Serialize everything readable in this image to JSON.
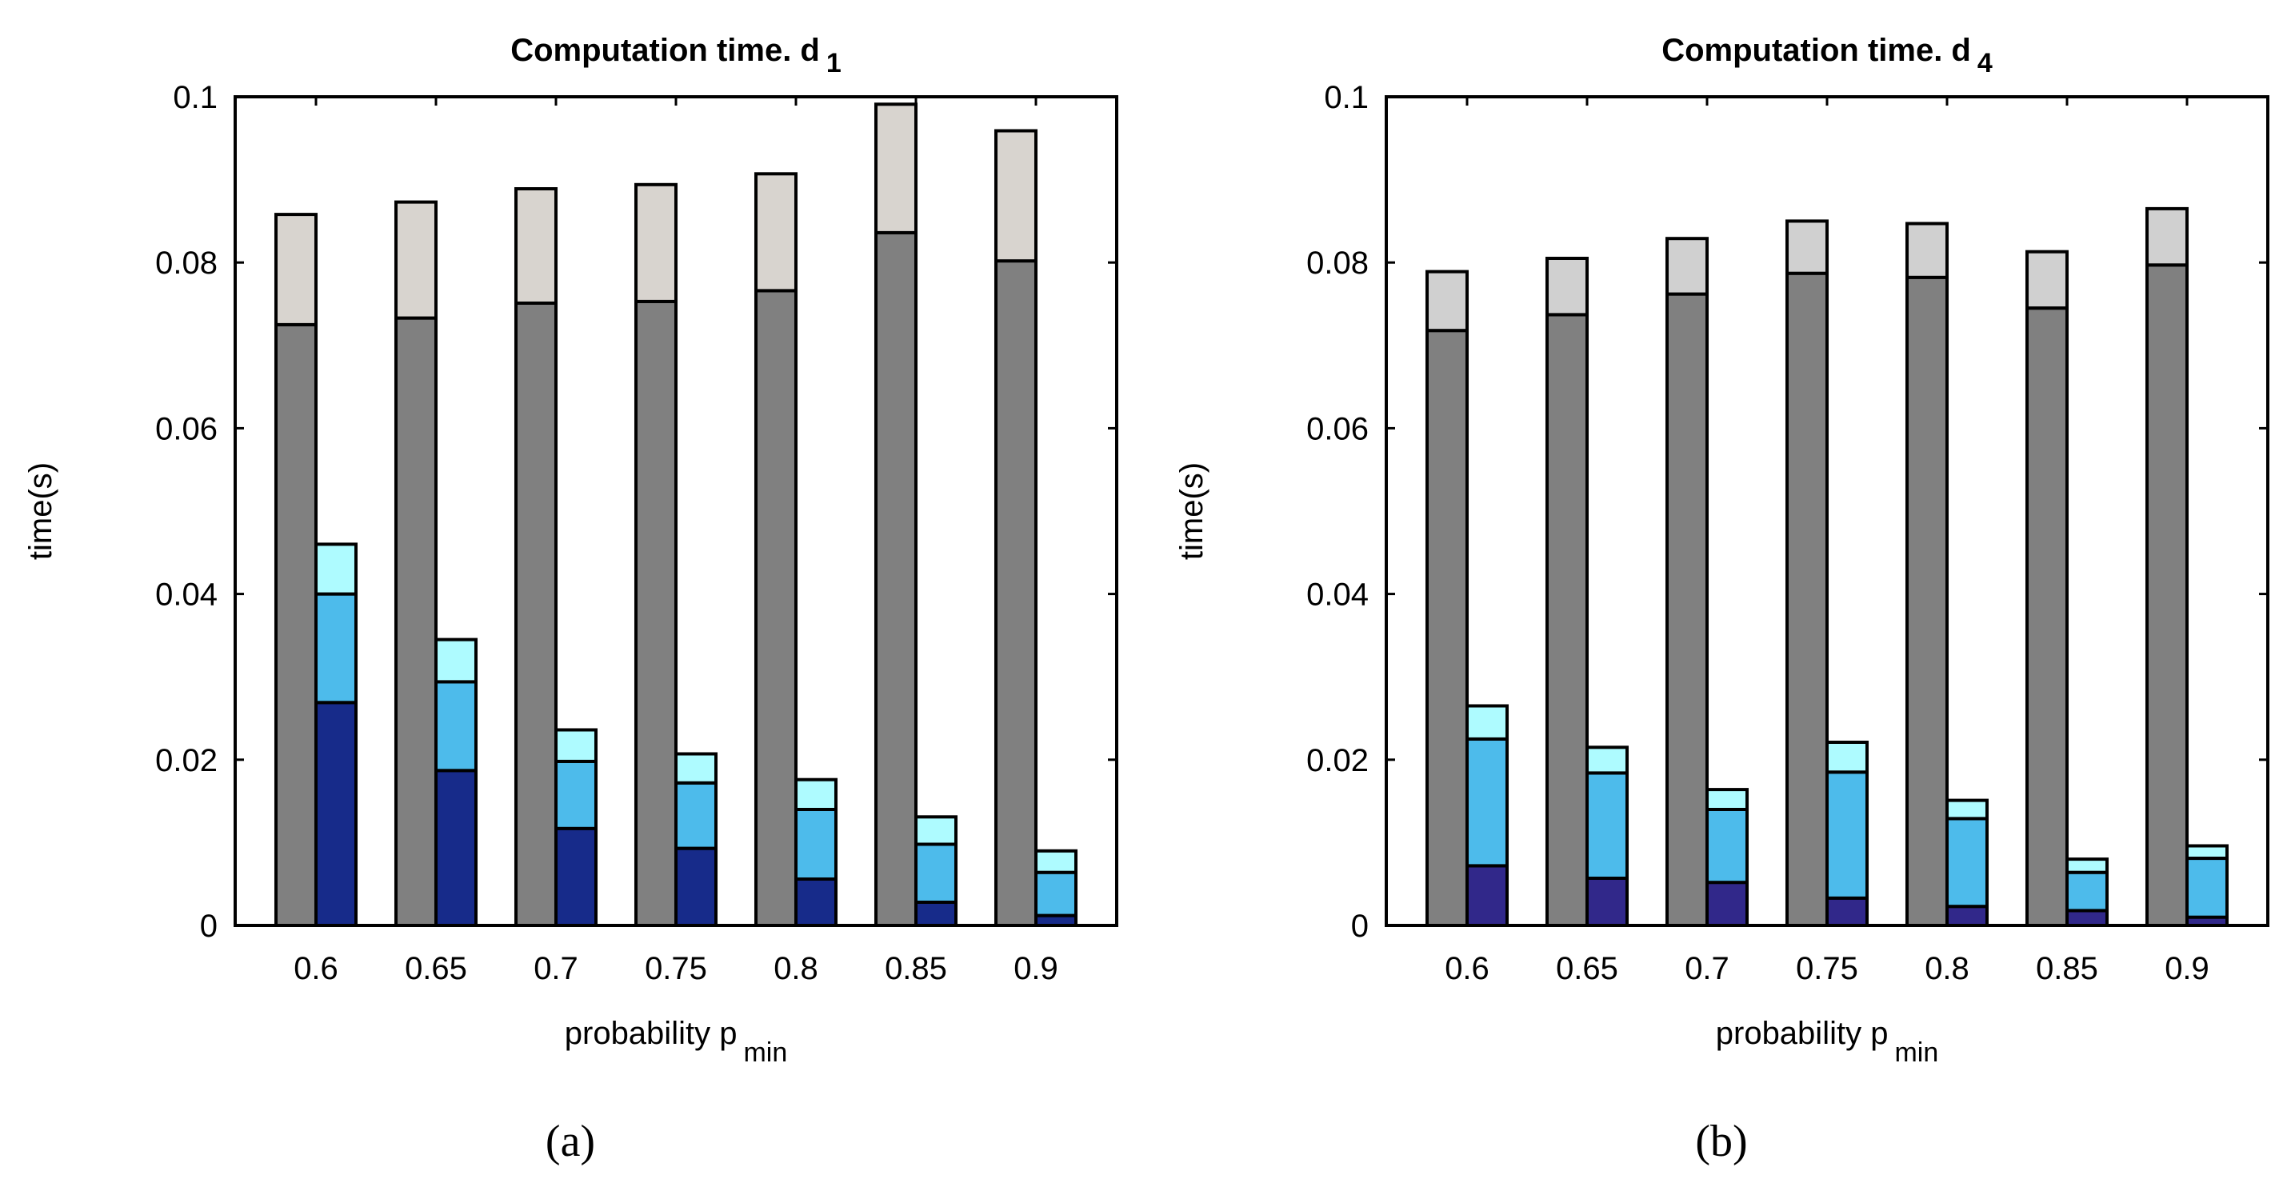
{
  "chart_data": [
    {
      "type": "bar",
      "panel_label": "(a)",
      "title": "Computation time. d",
      "title_subscript": "1",
      "xlabel": "probability p",
      "xlabel_subscript": "min",
      "ylabel": "time(s)",
      "ylim": [
        0,
        0.1
      ],
      "yticks": [
        "0",
        "0.02",
        "0.04",
        "0.06",
        "0.08",
        "0.1"
      ],
      "grid": false,
      "categories": [
        "0.6",
        "0.65",
        "0.7",
        "0.75",
        "0.8",
        "0.85",
        "0.9"
      ],
      "stacks": [
        {
          "colors": [
            "#808080",
            "#d8d4cf"
          ],
          "values": [
            [
              0.0725,
              0.0133
            ],
            [
              0.0733,
              0.014
            ],
            [
              0.0751,
              0.0138
            ],
            [
              0.0753,
              0.0141
            ],
            [
              0.0766,
              0.0141
            ],
            [
              0.0836,
              0.0155
            ],
            [
              0.0802,
              0.0157
            ]
          ]
        },
        {
          "colors": [
            "#172b8a",
            "#4dbbeb",
            "#aefbff"
          ],
          "values": [
            [
              0.0269,
              0.0131,
              0.006
            ],
            [
              0.0187,
              0.0107,
              0.0051
            ],
            [
              0.0117,
              0.0081,
              0.0038
            ],
            [
              0.0093,
              0.0079,
              0.0035
            ],
            [
              0.0056,
              0.0084,
              0.0036
            ],
            [
              0.0028,
              0.007,
              0.0033
            ],
            [
              0.0012,
              0.0052,
              0.0026
            ]
          ]
        }
      ]
    },
    {
      "type": "bar",
      "panel_label": "(b)",
      "title": "Computation time. d",
      "title_subscript": "4",
      "xlabel": "probability p",
      "xlabel_subscript": "min",
      "ylabel": "time(s)",
      "ylim": [
        0,
        0.1
      ],
      "yticks": [
        "0",
        "0.02",
        "0.04",
        "0.06",
        "0.08",
        "0.1"
      ],
      "grid": false,
      "categories": [
        "0.6",
        "0.65",
        "0.7",
        "0.75",
        "0.8",
        "0.85",
        "0.9"
      ],
      "stacks": [
        {
          "colors": [
            "#808080",
            "#d0d0d0"
          ],
          "values": [
            [
              0.0718,
              0.0071
            ],
            [
              0.0737,
              0.0068
            ],
            [
              0.0762,
              0.0067
            ],
            [
              0.0787,
              0.0063
            ],
            [
              0.0782,
              0.0065
            ],
            [
              0.0745,
              0.0068
            ],
            [
              0.0797,
              0.0068
            ]
          ]
        },
        {
          "colors": [
            "#31288a",
            "#4dbbeb",
            "#aefbff"
          ],
          "values": [
            [
              0.0072,
              0.0153,
              0.004
            ],
            [
              0.0057,
              0.0127,
              0.0031
            ],
            [
              0.0052,
              0.0088,
              0.0024
            ],
            [
              0.0033,
              0.0152,
              0.0036
            ],
            [
              0.0023,
              0.0106,
              0.0022
            ],
            [
              0.0018,
              0.0046,
              0.0016
            ],
            [
              0.001,
              0.0071,
              0.0015
            ]
          ]
        }
      ]
    }
  ]
}
